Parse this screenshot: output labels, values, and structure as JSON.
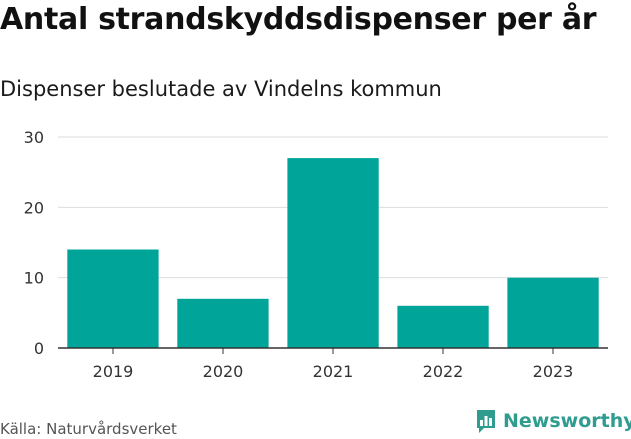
{
  "title": "Antal strandskyddsdispenser per år",
  "subtitle": "Dispenser beslutade av Vindelns kommun",
  "source": "Källa: Naturvårdsverket",
  "brand": {
    "name": "Newsworthy",
    "icon": "newsworthy-logo-icon",
    "color": "#2e9c8e"
  },
  "colors": {
    "bar": "#00a499",
    "grid": "#dddddd",
    "axis": "#333333"
  },
  "chart_data": {
    "type": "bar",
    "title": "Antal strandskyddsdispenser per år",
    "subtitle": "Dispenser beslutade av Vindelns kommun",
    "xlabel": "",
    "ylabel": "",
    "categories": [
      "2019",
      "2020",
      "2021",
      "2022",
      "2023"
    ],
    "values": [
      14,
      7,
      27,
      6,
      10
    ],
    "ylim": [
      0,
      30
    ],
    "yticks": [
      0,
      10,
      20,
      30
    ],
    "grid": true,
    "legend": "none"
  }
}
